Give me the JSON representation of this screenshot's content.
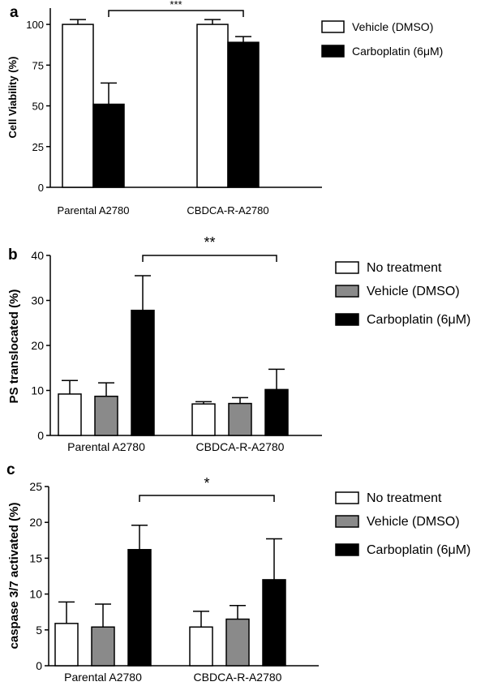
{
  "chart_data": [
    {
      "type": "bar",
      "panel_label": "a",
      "categories": [
        "Parental A2780",
        "CBDCA-R-A2780"
      ],
      "series": [
        {
          "name": "Vehicle (DMSO)",
          "values": [
            100,
            100
          ],
          "errors": [
            3,
            3
          ],
          "color": "#ffffff"
        },
        {
          "name": "Carboplatin (6μM)",
          "values": [
            51,
            89
          ],
          "errors": [
            13,
            3.5
          ],
          "color": "#000000"
        }
      ],
      "ylabel": "Cell Viability (%)",
      "ylim": [
        0,
        110
      ],
      "yticks": [
        0,
        25,
        50,
        75,
        100
      ],
      "significance": {
        "label": "***",
        "from": "Parental A2780 / Carboplatin (6μM)",
        "to": "CBDCA-R-A2780 / Carboplatin (6μM)"
      },
      "legend_position": "top-right"
    },
    {
      "type": "bar",
      "panel_label": "b",
      "categories": [
        "Parental A2780",
        "CBDCA-R-A2780"
      ],
      "series": [
        {
          "name": "No treatment",
          "values": [
            9.2,
            7.0
          ],
          "errors": [
            3.0,
            0.5
          ],
          "color": "#ffffff"
        },
        {
          "name": "Vehicle (DMSO)",
          "values": [
            8.7,
            7.1
          ],
          "errors": [
            3.0,
            1.3
          ],
          "color": "#8a8a8a"
        },
        {
          "name": "Carboplatin (6μM)",
          "values": [
            27.8,
            10.2
          ],
          "errors": [
            7.7,
            4.5
          ],
          "color": "#000000"
        }
      ],
      "ylabel": "PS translocated (%)",
      "ylim": [
        0,
        40
      ],
      "yticks": [
        0,
        10,
        20,
        30,
        40
      ],
      "significance": {
        "label": "**",
        "from": "Parental A2780 / Carboplatin (6μM)",
        "to": "CBDCA-R-A2780 / Carboplatin (6μM)"
      },
      "legend_position": "top-right"
    },
    {
      "type": "bar",
      "panel_label": "c",
      "categories": [
        "Parental A2780",
        "CBDCA-R-A2780"
      ],
      "series": [
        {
          "name": "No treatment",
          "values": [
            5.9,
            5.4
          ],
          "errors": [
            3.0,
            2.2
          ],
          "color": "#ffffff"
        },
        {
          "name": "Vehicle (DMSO)",
          "values": [
            5.4,
            6.5
          ],
          "errors": [
            3.2,
            1.9
          ],
          "color": "#8a8a8a"
        },
        {
          "name": "Carboplatin (6μM)",
          "values": [
            16.2,
            12.0
          ],
          "errors": [
            3.4,
            5.7
          ],
          "color": "#000000"
        }
      ],
      "ylabel": "caspase 3/7 activated (%)",
      "ylim": [
        0,
        25
      ],
      "yticks": [
        0,
        5,
        10,
        15,
        20,
        25
      ],
      "significance": {
        "label": "*",
        "from": "Parental A2780 / Carboplatin (6μM)",
        "to": "CBDCA-R-A2780 / Carboplatin (6μM)"
      },
      "legend_position": "top-right"
    }
  ]
}
